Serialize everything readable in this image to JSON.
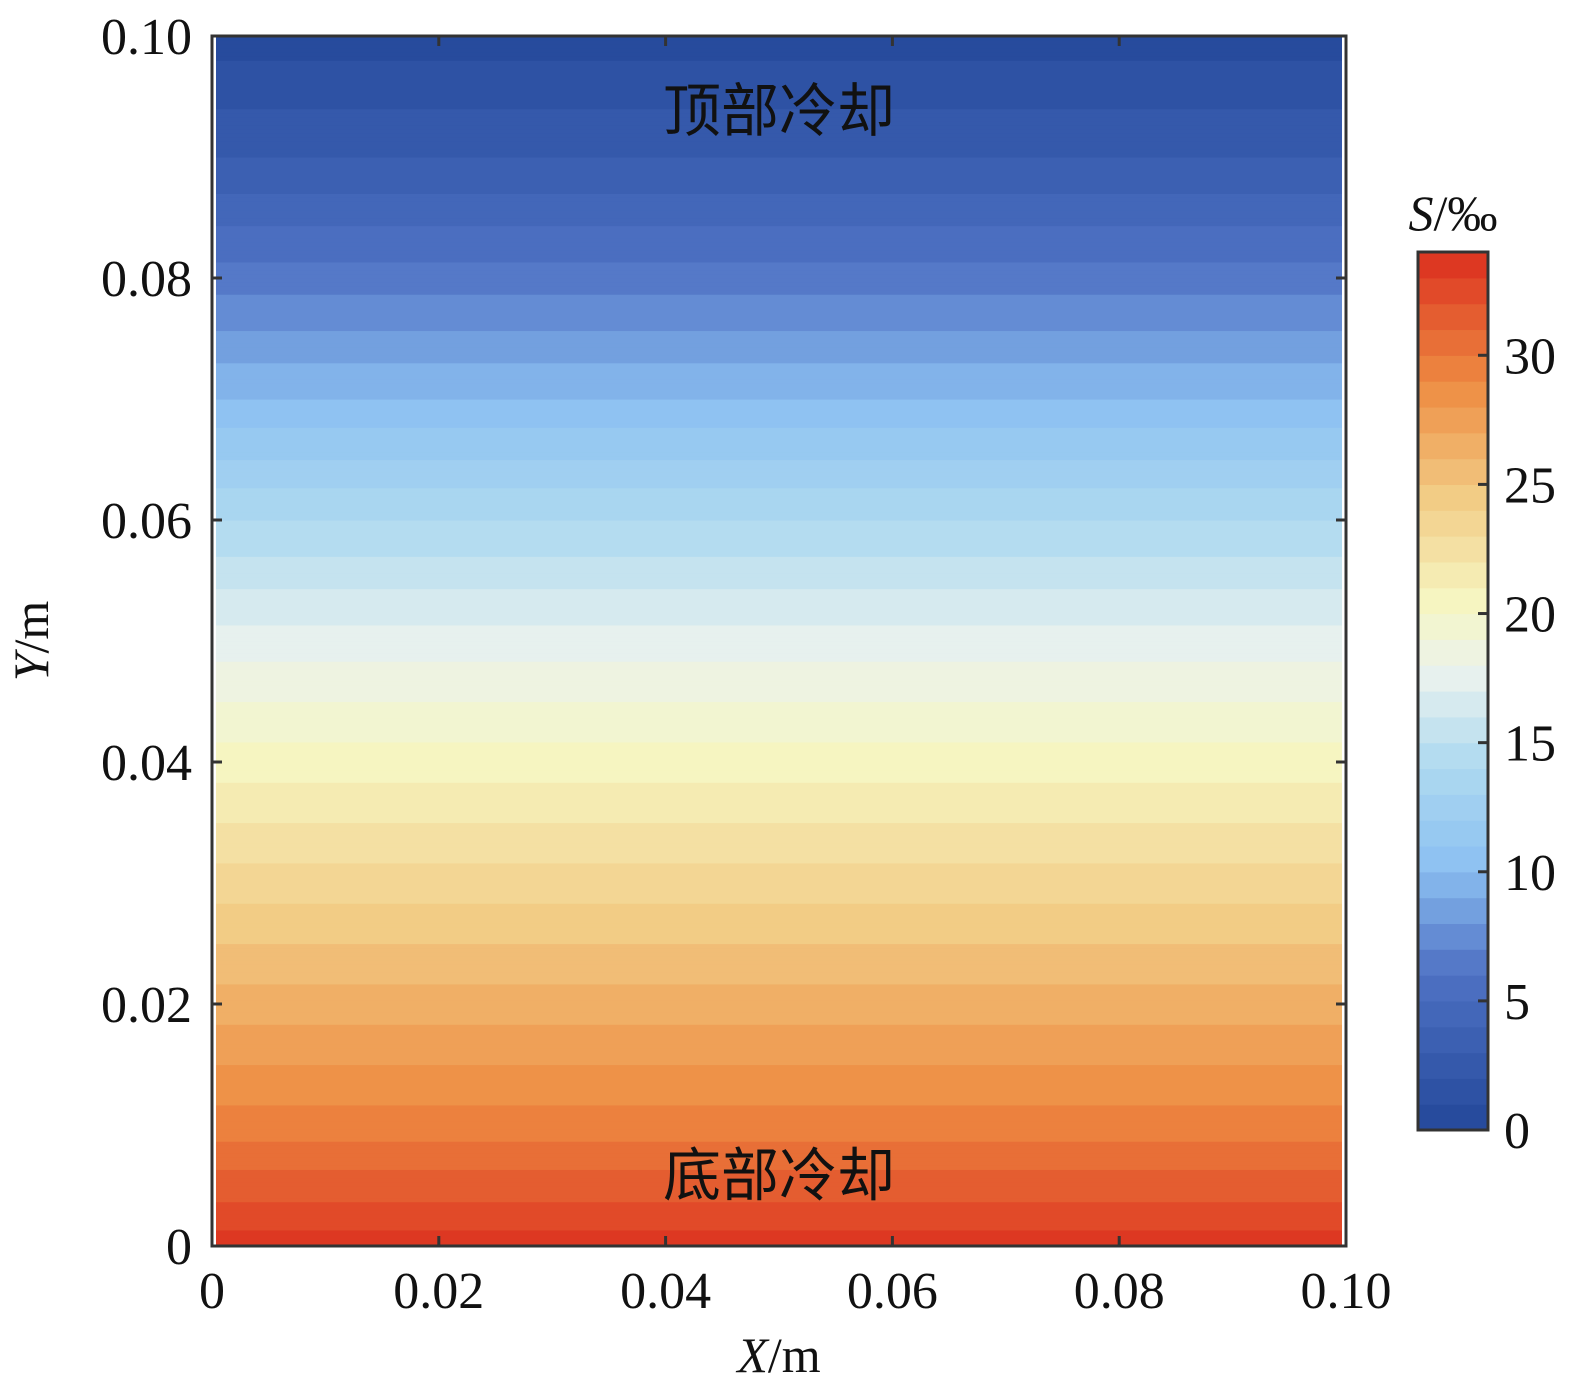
{
  "chart_data": {
    "type": "heatmap",
    "title": "",
    "xlabel": {
      "var": "X",
      "unit": "/m"
    },
    "ylabel": {
      "var": "Y",
      "unit": "/m"
    },
    "xlim": [
      0,
      0.1
    ],
    "ylim": [
      0,
      0.1
    ],
    "xticks": [
      "0",
      "0.02",
      "0.04",
      "0.06",
      "0.08",
      "0.10"
    ],
    "yticks": [
      "0",
      "0.02",
      "0.04",
      "0.06",
      "0.08",
      "0.10"
    ],
    "xtick_values": [
      0,
      0.02,
      0.04,
      0.06,
      0.08,
      0.1
    ],
    "ytick_values": [
      0,
      0.02,
      0.04,
      0.06,
      0.08,
      0.1
    ],
    "field_description": "horizontally uniform layers; S varies only with Y",
    "profile": {
      "y": [
        0,
        0.01,
        0.02,
        0.03,
        0.04,
        0.05,
        0.06,
        0.07,
        0.08,
        0.09,
        0.1
      ],
      "s": [
        33.5,
        29.5,
        26.5,
        23.5,
        20.5,
        17.5,
        14.0,
        10.0,
        6.5,
        3.0,
        0.5
      ]
    },
    "annotations": [
      {
        "text": "顶部冷却",
        "x": 0.05,
        "y": 0.0935
      },
      {
        "text": "底部冷却",
        "x": 0.05,
        "y": 0.0055
      }
    ],
    "colorbar": {
      "label": {
        "var": "S",
        "unit": "/‰"
      },
      "range": [
        0,
        34
      ],
      "ticks": [
        "0",
        "5",
        "10",
        "15",
        "20",
        "25",
        "30"
      ],
      "tick_values": [
        0,
        5,
        10,
        15,
        20,
        25,
        30
      ],
      "levels": 34,
      "colormap": [
        {
          "v": 0.0,
          "color": "#23479a"
        },
        {
          "v": 0.18,
          "color": "#4f72c4"
        },
        {
          "v": 0.3,
          "color": "#8cc0f2"
        },
        {
          "v": 0.42,
          "color": "#b0dbf0"
        },
        {
          "v": 0.52,
          "color": "#eaf2ee"
        },
        {
          "v": 0.6,
          "color": "#f6f6c2"
        },
        {
          "v": 0.72,
          "color": "#f2cc85"
        },
        {
          "v": 0.85,
          "color": "#ee8c42"
        },
        {
          "v": 1.0,
          "color": "#db2f1e"
        }
      ]
    }
  }
}
